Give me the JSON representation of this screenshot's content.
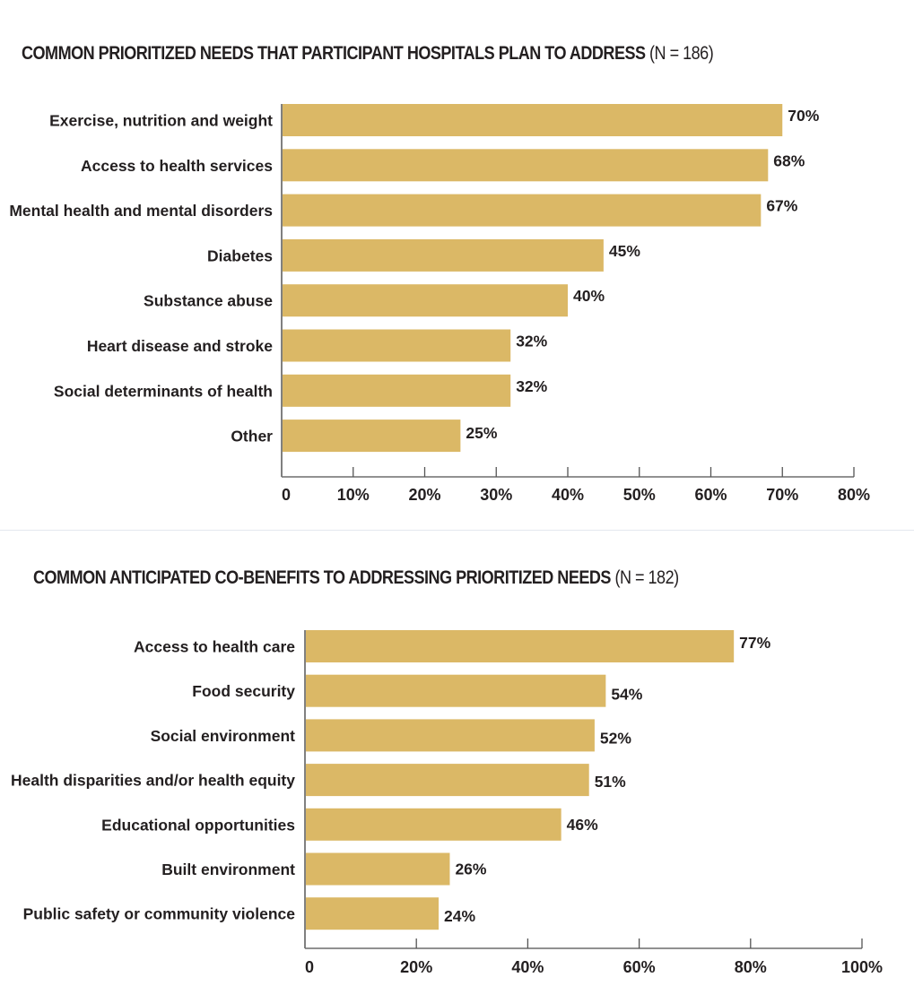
{
  "chart_data": [
    {
      "type": "bar",
      "orientation": "horizontal",
      "title": "COMMON PRIORITIZED NEEDS THAT PARTICIPANT HOSPITALS PLAN TO ADDRESS",
      "title_note": "(N = 186)",
      "categories": [
        "Exercise, nutrition and weight",
        "Access to health services",
        "Mental health and mental disorders",
        "Diabetes",
        "Substance abuse",
        "Heart disease and stroke",
        "Social determinants of health",
        "Other"
      ],
      "values": [
        70,
        68,
        67,
        45,
        40,
        32,
        32,
        25
      ],
      "value_labels": [
        "70%",
        "68%",
        "67%",
        "45%",
        "40%",
        "32%",
        "32%",
        "25%"
      ],
      "xlabel": "",
      "ylabel": "",
      "xlim": [
        0,
        80
      ],
      "x_ticks": [
        0,
        10,
        20,
        30,
        40,
        50,
        60,
        70,
        80
      ],
      "x_tick_labels": [
        "0",
        "10%",
        "20%",
        "30%",
        "40%",
        "50%",
        "60%",
        "70%",
        "80%"
      ],
      "grid": false,
      "legend": "none",
      "bar_color": "#DBB866"
    },
    {
      "type": "bar",
      "orientation": "horizontal",
      "title": "COMMON ANTICIPATED CO-BENEFITS TO ADDRESSING PRIORITIZED NEEDS",
      "title_note": "(N = 182)",
      "categories": [
        "Access to health care",
        "Food security",
        "Social environment",
        "Health disparities and/or health equity",
        "Educational opportunities",
        "Built environment",
        "Public safety or community violence"
      ],
      "values": [
        77,
        54,
        52,
        51,
        46,
        26,
        24
      ],
      "value_labels": [
        "77%",
        "54%",
        "52%",
        "51%",
        "46%",
        "26%",
        "24%"
      ],
      "xlabel": "",
      "ylabel": "",
      "xlim": [
        0,
        100
      ],
      "x_ticks": [
        0,
        20,
        40,
        60,
        80,
        100
      ],
      "x_tick_labels": [
        "0",
        "20%",
        "40%",
        "60%",
        "80%",
        "100%"
      ],
      "grid": false,
      "legend": "none",
      "bar_color": "#DBB866"
    }
  ]
}
